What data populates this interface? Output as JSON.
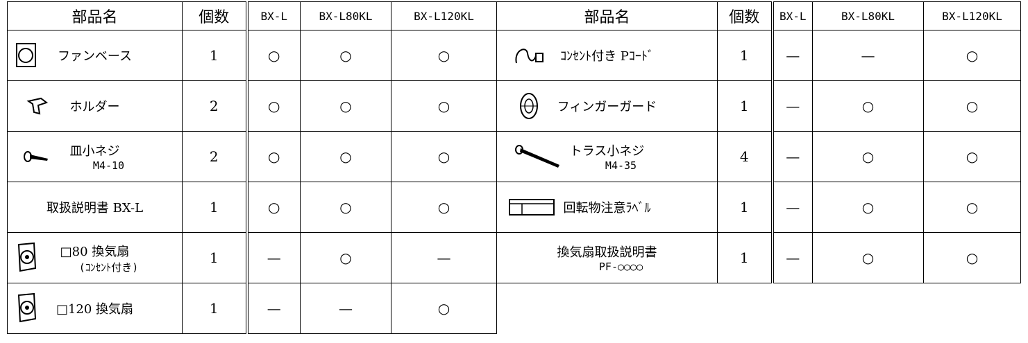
{
  "left_table": {
    "headers": [
      "部品名",
      "個数",
      "BX-L",
      "BX-L80KL",
      "BX-L120KL"
    ],
    "rows": [
      {
        "name": "ファンベース",
        "count": 1,
        "marks": [
          "○",
          "○",
          "○"
        ]
      },
      {
        "name": "ホルダー",
        "count": 2,
        "marks": [
          "○",
          "○",
          "○"
        ]
      },
      {
        "name": "皿小ネジ",
        "spec": "M4-10",
        "count": 2,
        "marks": [
          "○",
          "○",
          "○"
        ]
      },
      {
        "name": "取扱説明書 BX-L",
        "count": 1,
        "marks": [
          "○",
          "○",
          "○"
        ]
      },
      {
        "name": "□80 換気扇",
        "spec": "(ｺﾝｾﾝﾄ付き)",
        "count": 1,
        "marks": [
          "—",
          "○",
          "—"
        ]
      },
      {
        "name": "□120 換気扇",
        "count": 1,
        "marks": [
          "—",
          "—",
          "○"
        ]
      }
    ]
  },
  "right_table": {
    "headers": [
      "部品名",
      "個数",
      "BX-L",
      "BX-L80KL",
      "BX-L120KL"
    ],
    "rows": [
      {
        "name": "ｺﾝｾﾝﾄ付き Pｺｰﾄﾞ",
        "count": 1,
        "marks": [
          "—",
          "—",
          "○"
        ]
      },
      {
        "name": "フィンガーガード",
        "count": 1,
        "marks": [
          "—",
          "○",
          "○"
        ]
      },
      {
        "name": "トラス小ネジ",
        "spec": "M4-35",
        "count": 4,
        "marks": [
          "—",
          "○",
          "○"
        ]
      },
      {
        "name": "回転物注意ﾗﾍﾞﾙ",
        "count": 1,
        "marks": [
          "—",
          "○",
          "○"
        ]
      },
      {
        "name": "換気扇取扱説明書",
        "spec": "PF-○○○○",
        "count": 1,
        "marks": [
          "—",
          "○",
          "○"
        ]
      }
    ]
  }
}
